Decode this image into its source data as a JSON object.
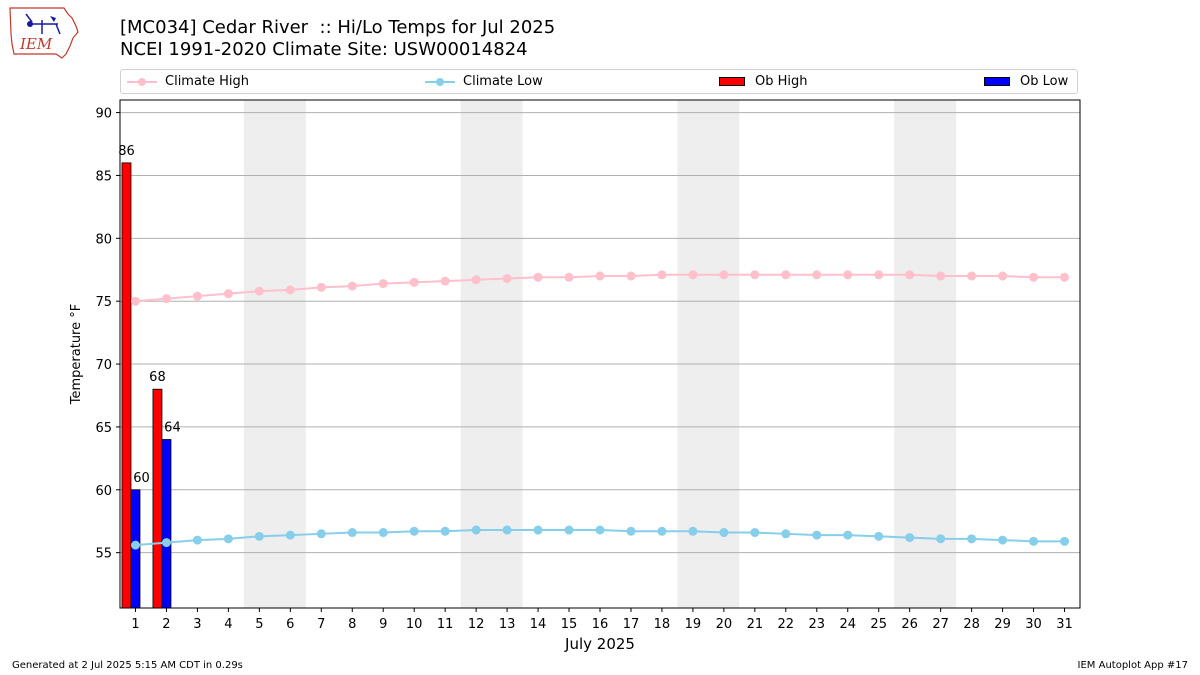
{
  "header": {
    "logo_text": "IEM",
    "title_line1": "[MC034] Cedar River  :: Hi/Lo Temps for Jul 2025",
    "title_line2": "NCEI 1991-2020 Climate Site: USW00014824"
  },
  "footer": {
    "left": "Generated at 2 Jul 2025 5:15 AM CDT in 0.29s",
    "right": "IEM Autoplot App #17"
  },
  "colors": {
    "climate_high": "#ffc0cb",
    "climate_low": "#87ceeb",
    "ob_high": "#ff0000",
    "ob_low": "#0000ff",
    "weekend_shade": "#eeeeee",
    "grid": "#b0b0b0"
  },
  "chart_data": {
    "type": "bar",
    "xlabel": "July 2025",
    "ylabel": "Temperature °F",
    "ylim": [
      50.6,
      91
    ],
    "yticks": [
      55,
      60,
      65,
      70,
      75,
      80,
      85,
      90
    ],
    "xlim": [
      0.5,
      31.5
    ],
    "x": [
      1,
      2,
      3,
      4,
      5,
      6,
      7,
      8,
      9,
      10,
      11,
      12,
      13,
      14,
      15,
      16,
      17,
      18,
      19,
      20,
      21,
      22,
      23,
      24,
      25,
      26,
      27,
      28,
      29,
      30,
      31
    ],
    "grid": "horizontal",
    "legend_position": "top",
    "shaded_ranges": [
      [
        4.5,
        6.5
      ],
      [
        11.5,
        13.5
      ],
      [
        18.5,
        20.5
      ],
      [
        25.5,
        27.5
      ]
    ],
    "series": [
      {
        "name": "Climate High",
        "type": "line",
        "values": [
          75.0,
          75.2,
          75.4,
          75.6,
          75.8,
          75.9,
          76.1,
          76.2,
          76.4,
          76.5,
          76.6,
          76.7,
          76.8,
          76.9,
          76.9,
          77.0,
          77.0,
          77.1,
          77.1,
          77.1,
          77.1,
          77.1,
          77.1,
          77.1,
          77.1,
          77.1,
          77.0,
          77.0,
          77.0,
          76.9,
          76.9
        ]
      },
      {
        "name": "Climate Low",
        "type": "line",
        "values": [
          55.6,
          55.8,
          56.0,
          56.1,
          56.3,
          56.4,
          56.5,
          56.6,
          56.6,
          56.7,
          56.7,
          56.8,
          56.8,
          56.8,
          56.8,
          56.8,
          56.7,
          56.7,
          56.7,
          56.6,
          56.6,
          56.5,
          56.4,
          56.4,
          56.3,
          56.2,
          56.1,
          56.1,
          56.0,
          55.9,
          55.9
        ]
      },
      {
        "name": "Ob High",
        "type": "bar",
        "x": [
          1,
          2
        ],
        "values": [
          86,
          68
        ],
        "labels": [
          "86",
          "68"
        ]
      },
      {
        "name": "Ob Low",
        "type": "bar",
        "x": [
          1,
          2
        ],
        "values": [
          60,
          64
        ],
        "labels": [
          "60",
          "64"
        ]
      }
    ]
  }
}
